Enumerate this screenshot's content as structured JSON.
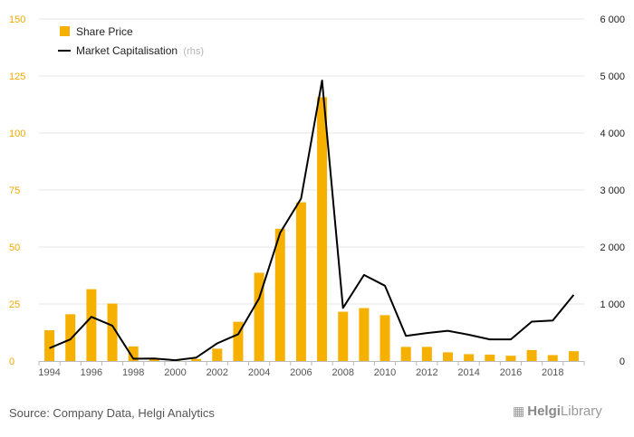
{
  "chart_data": {
    "type": "bar",
    "x": [
      1994,
      1995,
      1996,
      1997,
      1998,
      1999,
      2000,
      2001,
      2002,
      2003,
      2004,
      2005,
      2006,
      2007,
      2008,
      2009,
      2010,
      2011,
      2012,
      2013,
      2014,
      2015,
      2016,
      2017,
      2018,
      2019
    ],
    "x_tick_labels": [
      "1994",
      "1996",
      "1998",
      "2000",
      "2002",
      "2004",
      "2006",
      "2008",
      "2010",
      "2012",
      "2014",
      "2016",
      "2018"
    ],
    "series": [
      {
        "name": "Share Price",
        "type": "bar",
        "axis": "left",
        "color": "#f5b000",
        "values": [
          13.5,
          20.5,
          31.5,
          25.2,
          6.4,
          0.9,
          0.3,
          0.9,
          5.4,
          17.2,
          38.7,
          58.0,
          69.6,
          115.7,
          21.6,
          23.2,
          20.1,
          6.2,
          6.2,
          3.8,
          3.0,
          2.8,
          2.3,
          4.8,
          2.6,
          4.3
        ]
      },
      {
        "name": "Market Capitalisation",
        "name_suffix": "(rhs)",
        "type": "line",
        "axis": "right",
        "color": "#000000",
        "values": [
          225,
          380,
          775,
          620,
          40,
          45,
          15,
          60,
          310,
          470,
          1100,
          2250,
          2850,
          4920,
          930,
          1510,
          1320,
          440,
          490,
          530,
          460,
          380,
          380,
          690,
          710,
          1160
        ]
      }
    ],
    "y_left": {
      "ylim": [
        0,
        150
      ],
      "ticks": [
        0,
        25,
        50,
        75,
        100,
        125,
        150
      ],
      "tick_labels": [
        "0",
        "25",
        "50",
        "75",
        "100",
        "125",
        "150"
      ],
      "color": "#f2a900"
    },
    "y_right": {
      "ylim": [
        0,
        6000
      ],
      "ticks": [
        0,
        1000,
        2000,
        3000,
        4000,
        5000,
        6000
      ],
      "tick_labels": [
        "0",
        "1 000",
        "2 000",
        "3 000",
        "4 000",
        "5 000",
        "6 000"
      ],
      "color": "#222222"
    },
    "grid": true,
    "legend_position": "top-left"
  },
  "footer": {
    "source": "Source: Company Data, Helgi Analytics",
    "logo_prefix": "Helgi",
    "logo_suffix": "Library"
  }
}
